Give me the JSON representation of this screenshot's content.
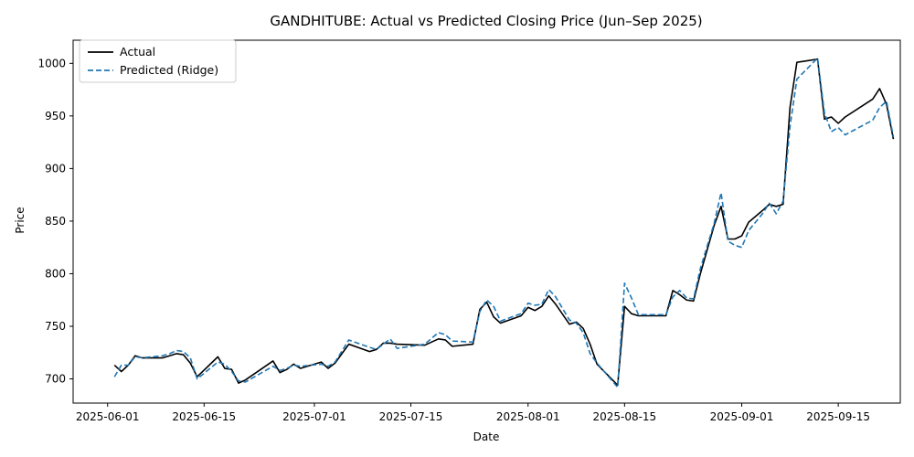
{
  "chart_data": {
    "type": "line",
    "title": "GANDHITUBE: Actual vs Predicted Closing Price (Jun–Sep 2025)",
    "xlabel": "Date",
    "ylabel": "Price",
    "xlim": [
      "2025-05-27",
      "2025-09-24"
    ],
    "ylim": [
      677,
      1022
    ],
    "x_ticks": [
      "2025-06-01",
      "2025-06-15",
      "2025-07-01",
      "2025-07-15",
      "2025-08-01",
      "2025-08-15",
      "2025-09-01",
      "2025-09-15"
    ],
    "y_ticks": [
      700,
      750,
      800,
      850,
      900,
      950,
      1000
    ],
    "grid": false,
    "legend_position": "top-left",
    "series": [
      {
        "name": "Actual",
        "color": "#000000",
        "style": "solid",
        "points": [
          [
            "2025-06-02",
            713
          ],
          [
            "2025-06-03",
            707
          ],
          [
            "2025-06-04",
            713
          ],
          [
            "2025-06-05",
            722
          ],
          [
            "2025-06-06",
            720
          ],
          [
            "2025-06-09",
            720
          ],
          [
            "2025-06-10",
            722
          ],
          [
            "2025-06-11",
            724
          ],
          [
            "2025-06-12",
            723
          ],
          [
            "2025-06-13",
            715
          ],
          [
            "2025-06-14",
            702
          ],
          [
            "2025-06-17",
            721
          ],
          [
            "2025-06-18",
            710
          ],
          [
            "2025-06-19",
            709
          ],
          [
            "2025-06-20",
            696
          ],
          [
            "2025-06-21",
            699
          ],
          [
            "2025-06-25",
            717
          ],
          [
            "2025-06-26",
            706
          ],
          [
            "2025-06-27",
            709
          ],
          [
            "2025-06-28",
            714
          ],
          [
            "2025-06-29",
            710
          ],
          [
            "2025-07-02",
            716
          ],
          [
            "2025-07-03",
            710
          ],
          [
            "2025-07-04",
            715
          ],
          [
            "2025-07-06",
            733
          ],
          [
            "2025-07-09",
            726
          ],
          [
            "2025-07-10",
            728
          ],
          [
            "2025-07-11",
            734
          ],
          [
            "2025-07-12",
            734
          ],
          [
            "2025-07-13",
            733
          ],
          [
            "2025-07-17",
            732
          ],
          [
            "2025-07-19",
            738
          ],
          [
            "2025-07-20",
            737
          ],
          [
            "2025-07-21",
            731
          ],
          [
            "2025-07-24",
            733
          ],
          [
            "2025-07-25",
            766
          ],
          [
            "2025-07-26",
            773
          ],
          [
            "2025-07-27",
            759
          ],
          [
            "2025-07-28",
            753
          ],
          [
            "2025-07-31",
            760
          ],
          [
            "2025-08-01",
            768
          ],
          [
            "2025-08-02",
            765
          ],
          [
            "2025-08-03",
            769
          ],
          [
            "2025-08-04",
            779
          ],
          [
            "2025-08-05",
            771
          ],
          [
            "2025-08-07",
            752
          ],
          [
            "2025-08-08",
            754
          ],
          [
            "2025-08-09",
            748
          ],
          [
            "2025-08-10",
            733
          ],
          [
            "2025-08-11",
            714
          ],
          [
            "2025-08-14",
            694
          ],
          [
            "2025-08-15",
            769
          ],
          [
            "2025-08-16",
            762
          ],
          [
            "2025-08-17",
            760
          ],
          [
            "2025-08-21",
            760
          ],
          [
            "2025-08-22",
            784
          ],
          [
            "2025-08-23",
            780
          ],
          [
            "2025-08-24",
            775
          ],
          [
            "2025-08-25",
            774
          ],
          [
            "2025-08-26",
            800
          ],
          [
            "2025-08-28",
            846
          ],
          [
            "2025-08-29",
            864
          ],
          [
            "2025-08-30",
            833
          ],
          [
            "2025-08-31",
            833
          ],
          [
            "2025-09-01",
            836
          ],
          [
            "2025-09-02",
            849
          ],
          [
            "2025-09-04",
            860
          ],
          [
            "2025-09-05",
            866
          ],
          [
            "2025-09-06",
            864
          ],
          [
            "2025-09-07",
            866
          ],
          [
            "2025-09-08",
            958
          ],
          [
            "2025-09-09",
            1001
          ],
          [
            "2025-09-12",
            1004
          ],
          [
            "2025-09-13",
            947
          ],
          [
            "2025-09-14",
            949
          ],
          [
            "2025-09-15",
            943
          ],
          [
            "2025-09-16",
            949
          ],
          [
            "2025-09-20",
            966
          ],
          [
            "2025-09-21",
            976
          ],
          [
            "2025-09-22",
            961
          ],
          [
            "2025-09-23",
            928
          ]
        ]
      },
      {
        "name": "Predicted (Ridge)",
        "color": "#1f77b4",
        "style": "dashed",
        "points": [
          [
            "2025-06-02",
            702
          ],
          [
            "2025-06-03",
            713
          ],
          [
            "2025-06-04",
            713
          ],
          [
            "2025-06-05",
            721
          ],
          [
            "2025-06-06",
            720
          ],
          [
            "2025-06-09",
            722
          ],
          [
            "2025-06-10",
            724
          ],
          [
            "2025-06-11",
            727
          ],
          [
            "2025-06-12",
            726
          ],
          [
            "2025-06-13",
            720
          ],
          [
            "2025-06-14",
            700
          ],
          [
            "2025-06-17",
            716
          ],
          [
            "2025-06-18",
            714
          ],
          [
            "2025-06-19",
            707
          ],
          [
            "2025-06-20",
            698
          ],
          [
            "2025-06-21",
            697
          ],
          [
            "2025-06-25",
            712
          ],
          [
            "2025-06-26",
            708
          ],
          [
            "2025-06-27",
            710
          ],
          [
            "2025-06-28",
            713
          ],
          [
            "2025-06-29",
            712
          ],
          [
            "2025-07-02",
            714
          ],
          [
            "2025-07-03",
            712
          ],
          [
            "2025-07-04",
            716
          ],
          [
            "2025-07-06",
            737
          ],
          [
            "2025-07-09",
            730
          ],
          [
            "2025-07-10",
            728
          ],
          [
            "2025-07-11",
            733
          ],
          [
            "2025-07-12",
            738
          ],
          [
            "2025-07-13",
            729
          ],
          [
            "2025-07-17",
            733
          ],
          [
            "2025-07-19",
            744
          ],
          [
            "2025-07-20",
            742
          ],
          [
            "2025-07-21",
            736
          ],
          [
            "2025-07-24",
            735
          ],
          [
            "2025-07-25",
            764
          ],
          [
            "2025-07-26",
            775
          ],
          [
            "2025-07-27",
            769
          ],
          [
            "2025-07-28",
            755
          ],
          [
            "2025-07-31",
            762
          ],
          [
            "2025-08-01",
            772
          ],
          [
            "2025-08-02",
            770
          ],
          [
            "2025-08-03",
            771
          ],
          [
            "2025-08-04",
            785
          ],
          [
            "2025-08-05",
            778
          ],
          [
            "2025-08-07",
            756
          ],
          [
            "2025-08-08",
            753
          ],
          [
            "2025-08-09",
            744
          ],
          [
            "2025-08-10",
            724
          ],
          [
            "2025-08-11",
            715
          ],
          [
            "2025-08-14",
            692
          ],
          [
            "2025-08-15",
            791
          ],
          [
            "2025-08-16",
            777
          ],
          [
            "2025-08-17",
            761
          ],
          [
            "2025-08-21",
            761
          ],
          [
            "2025-08-22",
            778
          ],
          [
            "2025-08-23",
            784
          ],
          [
            "2025-08-24",
            777
          ],
          [
            "2025-08-25",
            776
          ],
          [
            "2025-08-26",
            805
          ],
          [
            "2025-08-28",
            848
          ],
          [
            "2025-08-29",
            877
          ],
          [
            "2025-08-30",
            831
          ],
          [
            "2025-08-31",
            827
          ],
          [
            "2025-09-01",
            825
          ],
          [
            "2025-09-02",
            841
          ],
          [
            "2025-09-04",
            857
          ],
          [
            "2025-09-05",
            867
          ],
          [
            "2025-09-06",
            857
          ],
          [
            "2025-09-07",
            869
          ],
          [
            "2025-09-08",
            940
          ],
          [
            "2025-09-09",
            985
          ],
          [
            "2025-09-12",
            1005
          ],
          [
            "2025-09-13",
            953
          ],
          [
            "2025-09-14",
            935
          ],
          [
            "2025-09-15",
            939
          ],
          [
            "2025-09-16",
            932
          ],
          [
            "2025-09-20",
            946
          ],
          [
            "2025-09-21",
            958
          ],
          [
            "2025-09-22",
            964
          ],
          [
            "2025-09-23",
            930
          ]
        ]
      }
    ]
  }
}
